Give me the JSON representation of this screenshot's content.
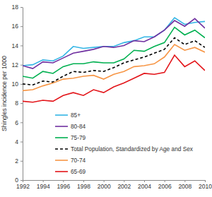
{
  "chart_data": {
    "type": "line",
    "y_label": "Shingles incidence per 1000",
    "x": [
      1992,
      1993,
      1994,
      1995,
      1996,
      1997,
      1998,
      1999,
      2000,
      2001,
      2002,
      2003,
      2004,
      2005,
      2006,
      2007,
      2008,
      2009,
      2010
    ],
    "xlim": [
      1992,
      2010
    ],
    "xticks": [
      1992,
      1994,
      1996,
      1998,
      2000,
      2002,
      2004,
      2006,
      2008,
      2010
    ],
    "ylim": [
      0,
      18
    ],
    "yticks": [
      0,
      2,
      4,
      6,
      8,
      10,
      12,
      14,
      16,
      18
    ],
    "grid": false,
    "legend": "bottom",
    "series": [
      {
        "name": "85+",
        "color": "#33b5e5",
        "line_style": "solid",
        "values": [
          11.9,
          12.0,
          12.5,
          12.4,
          12.9,
          13.9,
          13.7,
          13.8,
          13.9,
          13.9,
          14.3,
          14.5,
          14.9,
          14.9,
          15.6,
          16.9,
          16.2,
          16.4,
          16.5
        ]
      },
      {
        "name": "80-84",
        "color": "#7030a0",
        "line_style": "solid",
        "values": [
          11.9,
          11.6,
          12.3,
          12.2,
          12.7,
          13.2,
          13.4,
          13.6,
          13.9,
          13.8,
          14.0,
          14.5,
          14.4,
          14.9,
          15.6,
          16.6,
          16.0,
          16.8,
          15.8
        ]
      },
      {
        "name": "75-79",
        "color": "#00b050",
        "line_style": "solid",
        "values": [
          10.8,
          10.6,
          11.3,
          11.1,
          11.8,
          12.1,
          12.1,
          12.3,
          12.2,
          12.2,
          12.6,
          13.5,
          13.4,
          13.9,
          14.3,
          15.9,
          15.1,
          15.6,
          14.8
        ]
      },
      {
        "name": "Total Population, Standardized by Age and Sex",
        "color": "#000000",
        "line_style": "dashed",
        "values": [
          10.0,
          9.9,
          10.3,
          10.2,
          10.8,
          11.3,
          11.2,
          11.4,
          11.3,
          11.7,
          12.2,
          12.5,
          12.8,
          13.2,
          13.6,
          14.8,
          14.1,
          14.5,
          13.8
        ]
      },
      {
        "name": "70-74",
        "color": "#f79646",
        "line_style": "solid",
        "values": [
          9.3,
          9.4,
          9.8,
          10.1,
          10.5,
          10.6,
          10.8,
          10.9,
          10.5,
          11.0,
          11.3,
          11.8,
          11.9,
          12.1,
          12.8,
          14.1,
          13.5,
          13.8,
          13.3
        ]
      },
      {
        "name": "65-69",
        "color": "#e3151a",
        "line_style": "solid",
        "values": [
          8.2,
          8.1,
          8.3,
          8.2,
          8.8,
          9.1,
          8.8,
          9.4,
          9.1,
          9.7,
          10.1,
          10.6,
          11.1,
          11.0,
          11.2,
          13.0,
          11.8,
          12.4,
          11.4
        ]
      }
    ]
  }
}
